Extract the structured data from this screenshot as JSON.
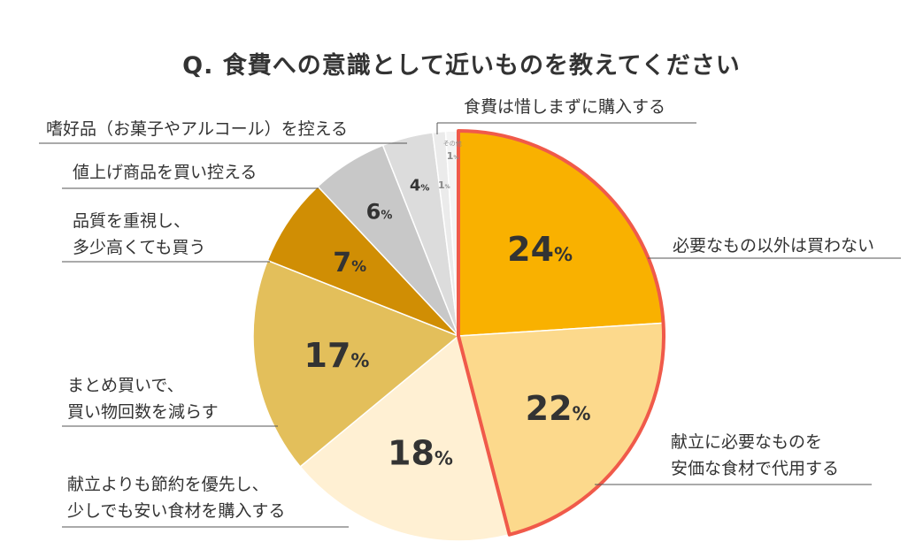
{
  "chart_data": {
    "type": "pie",
    "title": "Q. 食費への意識として近いものを教えてください",
    "start_angle_deg": 0,
    "direction": "clockwise",
    "highlighted_slices": [
      0,
      1
    ],
    "highlight_color": "#F05A4A",
    "slices": [
      {
        "label": [
          "必要なもの以外は買わない"
        ],
        "value": 24,
        "value_label": "24",
        "color": "#F9B100"
      },
      {
        "label": [
          "献立に必要なものを",
          "安価な食材で代用する"
        ],
        "value": 22,
        "value_label": "22",
        "color": "#FCD98C"
      },
      {
        "label": [
          "献立よりも節約を優先し、",
          "少しでも安い食材を購入する"
        ],
        "value": 18,
        "value_label": "18",
        "color": "#FFF0D3"
      },
      {
        "label": [
          "まとめ買いで、",
          "買い物回数を減らす"
        ],
        "value": 17,
        "value_label": "17",
        "color": "#E3BF5B"
      },
      {
        "label": [
          "品質を重視し、",
          "多少高くても買う"
        ],
        "value": 7,
        "value_label": "7",
        "color": "#D08E04"
      },
      {
        "label": [
          "値上げ商品を買い控える"
        ],
        "value": 6,
        "value_label": "6",
        "color": "#C8C8C8"
      },
      {
        "label": [
          "嗜好品（お菓子やアルコール）を控える"
        ],
        "value": 4,
        "value_label": "4",
        "color": "#DCDCDC"
      },
      {
        "label": [
          "食費は惜しまずに購入する"
        ],
        "value": 1,
        "value_label": "1",
        "color": "#EBEBEB"
      },
      {
        "label": [
          "その他"
        ],
        "value": 1,
        "value_label": "1",
        "color": "#F4F4F4"
      }
    ],
    "unit_suffix": "%",
    "legend": "none"
  }
}
